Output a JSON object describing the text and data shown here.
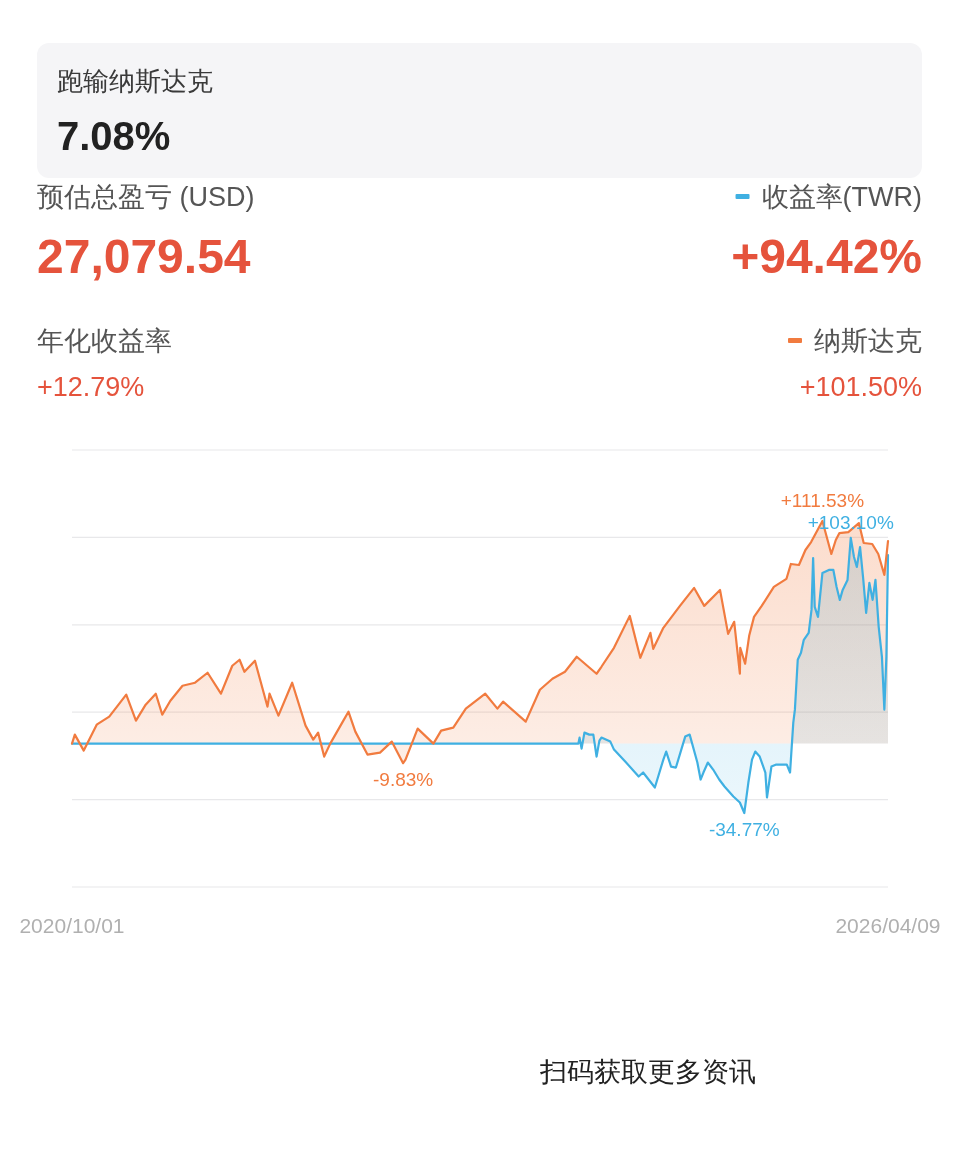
{
  "chart_data": {
    "type": "area",
    "series": [
      {
        "name": "收益率(TWR)",
        "color": "#3fb0e2",
        "x": [
          "2020-10-01",
          "2024-03-05",
          "2024-03-08",
          "2024-03-13",
          "2024-03-20",
          "2024-04-01",
          "2024-04-11",
          "2024-04-19",
          "2024-04-26",
          "2024-05-01",
          "2024-05-23",
          "2024-06-01",
          "2024-07-01",
          "2024-08-01",
          "2024-08-12",
          "2024-09-10",
          "2024-10-01",
          "2024-10-08",
          "2024-10-20",
          "2024-11-01",
          "2024-11-24",
          "2024-12-05",
          "2024-12-24",
          "2025-01-01",
          "2025-01-08",
          "2025-01-19",
          "2025-02-01",
          "2025-02-16",
          "2025-03-01",
          "2025-03-23",
          "2025-04-08",
          "2025-04-19",
          "2025-04-29",
          "2025-05-08",
          "2025-05-16",
          "2025-05-27",
          "2025-06-10",
          "2025-06-14",
          "2025-06-25",
          "2025-07-07",
          "2025-08-02",
          "2025-08-10",
          "2025-08-18",
          "2025-08-22",
          "2025-08-29",
          "2025-09-06",
          "2025-09-13",
          "2025-09-25",
          "2025-10-02",
          "2025-10-06",
          "2025-10-10",
          "2025-10-18",
          "2025-10-29",
          "2025-11-14",
          "2025-11-25",
          "2025-12-03",
          "2025-12-11",
          "2025-12-18",
          "2025-12-30",
          "2026-01-07",
          "2026-01-15",
          "2026-01-22",
          "2026-01-30",
          "2026-02-07",
          "2026-02-14",
          "2026-02-22",
          "2026-03-02",
          "2026-03-09",
          "2026-03-17",
          "2026-03-25",
          "2026-03-31",
          "2026-04-05",
          "2026-04-09"
        ],
        "values": [
          0,
          0,
          3,
          -2.5,
          5.5,
          4.5,
          4.5,
          -6.5,
          1.5,
          3,
          1,
          -3,
          -9.5,
          -16.5,
          -14.5,
          -22,
          -8,
          -4,
          -11.5,
          -12,
          3.5,
          4.5,
          -9.5,
          -18,
          -14.5,
          -9.5,
          -13,
          -18,
          -21.5,
          -26.5,
          -29.5,
          -34.77,
          -19.5,
          -8,
          -4,
          -6.5,
          -14.5,
          -27,
          -11.5,
          -10.5,
          -10.5,
          -14.5,
          10.5,
          17,
          42,
          45.5,
          52,
          55.5,
          67,
          93,
          68.5,
          63.5,
          85.5,
          87,
          87,
          78.5,
          72,
          77,
          82,
          103.1,
          93.5,
          88.5,
          98.5,
          82,
          65.5,
          80.5,
          72,
          82,
          58.5,
          43.5,
          17,
          43.5,
          94.42
        ],
        "value_labels": [
          null,
          null,
          null,
          null,
          null,
          null,
          null,
          null,
          null,
          null,
          null,
          null,
          null,
          null,
          null,
          null,
          null,
          null,
          null,
          null,
          null,
          null,
          null,
          null,
          null,
          null,
          null,
          null,
          null,
          null,
          null,
          "-34.77%",
          null,
          null,
          null,
          null,
          null,
          null,
          null,
          null,
          null,
          null,
          null,
          null,
          null,
          null,
          null,
          null,
          null,
          null,
          null,
          null,
          null,
          null,
          null,
          null,
          null,
          null,
          null,
          "+103.10%",
          null,
          null,
          null,
          null,
          null,
          null,
          null,
          null,
          null,
          null,
          null,
          null,
          null
        ]
      },
      {
        "name": "纳斯达克",
        "color": "#f17b3f",
        "x": [
          "2020-10-01",
          "2020-10-08",
          "2020-10-30",
          "2020-12-01",
          "2021-01-01",
          "2021-02-12",
          "2021-03-08",
          "2021-04-01",
          "2021-04-26",
          "2021-05-12",
          "2021-06-01",
          "2021-07-01",
          "2021-08-01",
          "2021-09-01",
          "2021-10-04",
          "2021-11-01",
          "2021-11-19",
          "2021-12-01",
          "2021-12-27",
          "2022-01-27",
          "2022-02-01",
          "2022-02-23",
          "2022-03-29",
          "2022-05-01",
          "2022-05-20",
          "2022-06-01",
          "2022-06-16",
          "2022-07-01",
          "2022-08-01",
          "2022-08-15",
          "2022-09-01",
          "2022-10-01",
          "2022-11-01",
          "2022-11-30",
          "2022-12-28",
          "2023-01-03",
          "2023-02-02",
          "2023-03-13",
          "2023-04-01",
          "2023-05-01",
          "2023-06-01",
          "2023-07-19",
          "2023-08-18",
          "2023-09-01",
          "2023-10-27",
          "2023-12-01",
          "2024-01-01",
          "2024-02-01",
          "2024-03-01",
          "2024-04-19",
          "2024-05-01",
          "2024-06-01",
          "2024-07-10",
          "2024-08-05",
          "2024-08-30",
          "2024-09-06",
          "2024-10-01",
          "2024-11-11",
          "2024-12-16",
          "2025-01-10",
          "2025-02-18",
          "2025-03-10",
          "2025-03-25",
          "2025-04-08",
          "2025-04-09",
          "2025-04-21",
          "2025-05-01",
          "2025-05-13",
          "2025-06-01",
          "2025-07-01",
          "2025-08-01",
          "2025-08-12",
          "2025-09-01",
          "2025-09-17",
          "2025-10-01",
          "2025-10-29",
          "2025-11-20",
          "2025-12-01",
          "2025-12-10",
          "2026-01-01",
          "2026-01-27",
          "2026-02-08",
          "2026-03-01",
          "2026-03-16",
          "2026-03-31",
          "2026-04-09"
        ],
        "values": [
          0,
          4.5,
          -3.5,
          9.5,
          13.5,
          24.5,
          11.5,
          19.5,
          25,
          14.5,
          21.5,
          29,
          30.5,
          35.5,
          25,
          39,
          42,
          36,
          41.5,
          18.5,
          25,
          14,
          30.5,
          9,
          2,
          5.5,
          -6.5,
          0,
          11,
          16,
          6,
          -5.5,
          -4.5,
          1,
          -9.83,
          -8,
          7.5,
          0,
          6.5,
          8,
          17.5,
          25,
          17.5,
          21,
          11,
          27,
          32.5,
          36,
          43.5,
          35,
          38.5,
          48,
          64,
          43,
          55.5,
          47.5,
          58,
          69,
          78,
          69,
          77,
          55,
          61,
          35,
          48,
          40,
          54,
          63.5,
          69,
          78.5,
          82.5,
          90,
          89.5,
          97,
          101,
          111.53,
          95,
          102,
          105.5,
          106,
          110.5,
          100.5,
          100,
          95,
          84.5,
          101.5
        ],
        "value_labels": [
          null,
          null,
          null,
          null,
          null,
          null,
          null,
          null,
          null,
          null,
          null,
          null,
          null,
          null,
          null,
          null,
          null,
          null,
          null,
          null,
          null,
          null,
          null,
          null,
          null,
          null,
          null,
          null,
          null,
          null,
          null,
          null,
          null,
          null,
          "-9.83%",
          null,
          null,
          null,
          null,
          null,
          null,
          null,
          null,
          null,
          null,
          null,
          null,
          null,
          null,
          null,
          null,
          null,
          null,
          null,
          null,
          null,
          null,
          null,
          null,
          null,
          null,
          null,
          null,
          null,
          null,
          null,
          null,
          null,
          null,
          null,
          null,
          null,
          null,
          null,
          null,
          "+111.53%",
          null,
          null,
          null,
          null,
          null,
          null,
          null,
          null,
          null,
          null
        ]
      }
    ],
    "xlim": [
      "2020-10-01",
      "2026-04-09"
    ],
    "xticks": [
      {
        "value": "2020-10-01",
        "label": "2020/10/01"
      },
      {
        "value": "2026-04-09",
        "label": "2026/04/09"
      }
    ],
    "grid": "y",
    "tick_labels": "x",
    "legend": "top right",
    "annotations": [
      "跑输纳斯达克",
      "7.08%",
      "预估总盈亏 (USD)",
      "27,079.54",
      "+94.42%",
      "年化收益率",
      "+12.79%",
      "+101.50%",
      "扫码获取更多资讯"
    ]
  }
}
